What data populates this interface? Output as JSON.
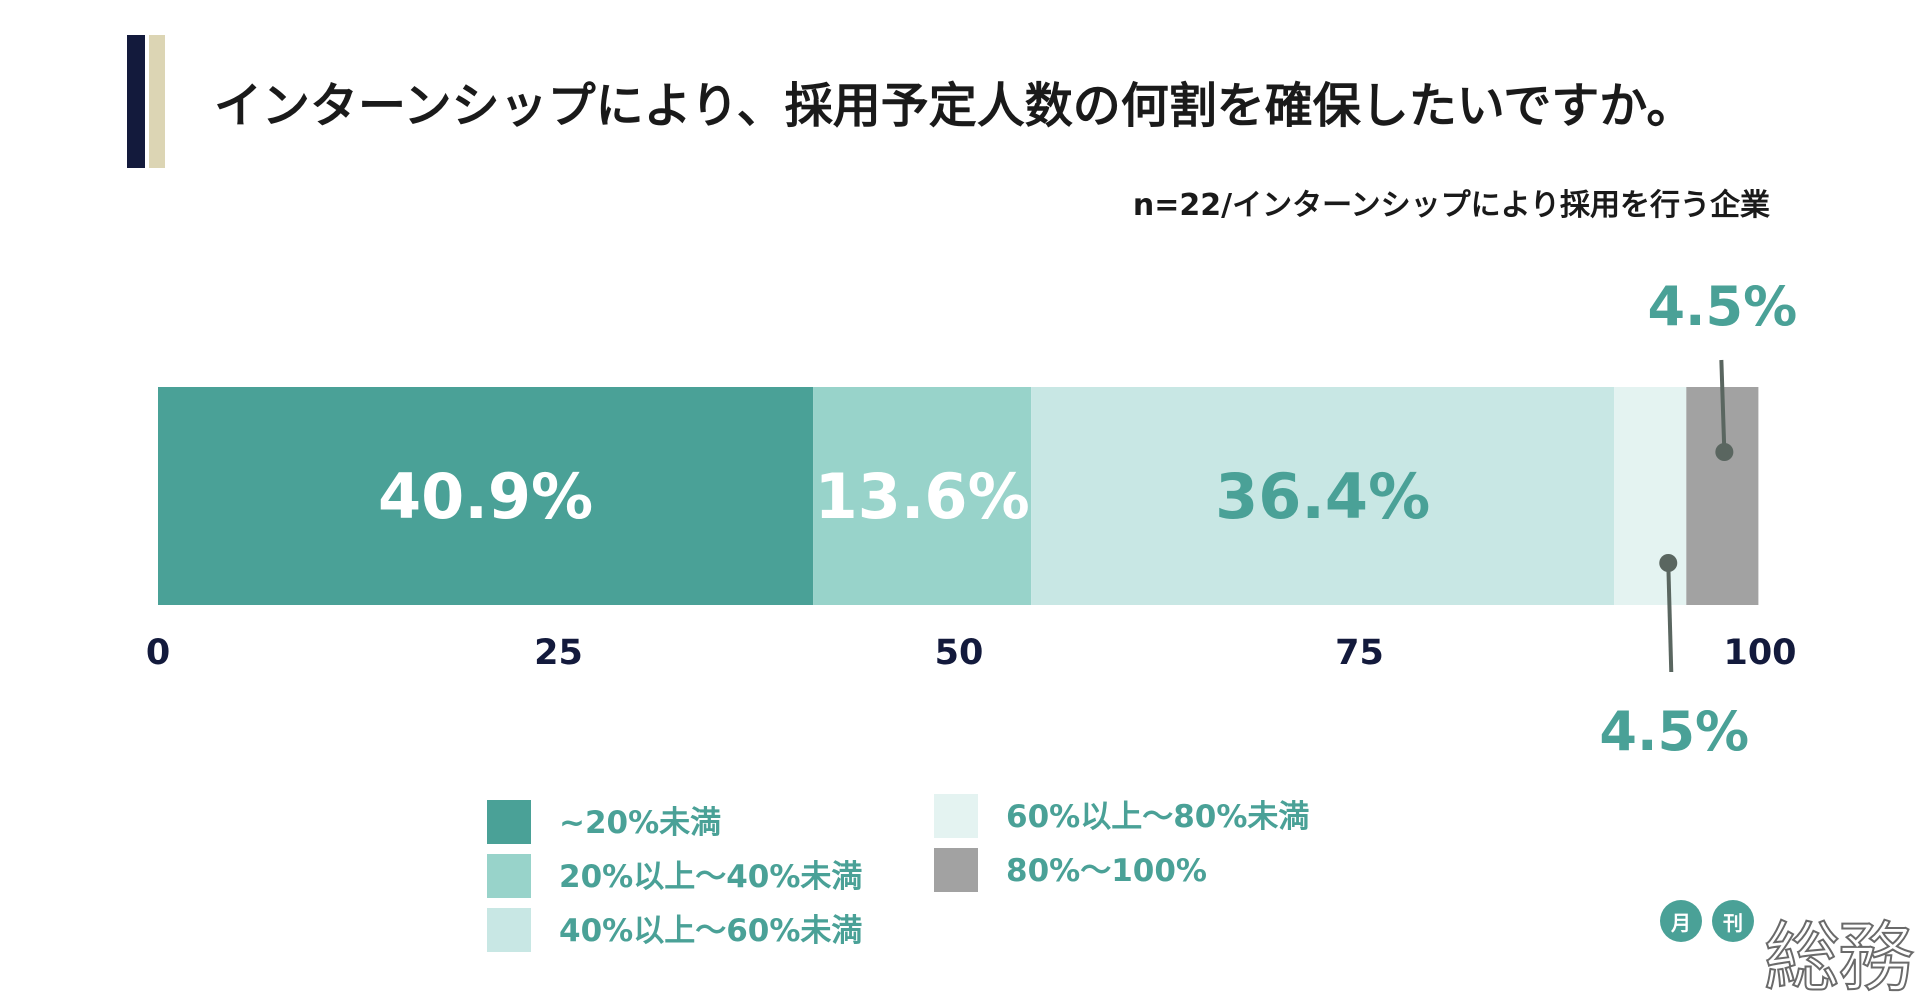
{
  "title": "インターンシップにより、採用予定人数の何割を確保したいですか。",
  "subtitle": "n=22/インターンシップにより採用を行う企業",
  "colors": {
    "c1": "#4aa197",
    "c2": "#98d3ca",
    "c3": "#c8e7e4",
    "c4": "#e4f3f1",
    "c5": "#a2a2a2",
    "label_dark_text": "#4aa197",
    "label_light_text": "#ffffff",
    "leader": "#5a6660"
  },
  "chart_data": {
    "type": "bar",
    "orientation": "horizontal-stacked",
    "title": "インターンシップにより、採用予定人数の何割を確保したいですか。",
    "subtitle": "n=22/インターンシップにより採用を行う企業",
    "xlim": [
      0,
      100
    ],
    "xticks": [
      "0",
      "25",
      "50",
      "75",
      "100"
    ],
    "series": [
      {
        "name": "~20%未満",
        "value": 40.9,
        "label": "40.9%"
      },
      {
        "name": "20%以上〜40%未満",
        "value": 13.6,
        "label": "13.6%"
      },
      {
        "name": "40%以上〜60%未満",
        "value": 36.4,
        "label": "36.4%"
      },
      {
        "name": "60%以上〜80%未満",
        "value": 4.5,
        "label": "4.5%"
      },
      {
        "name": "80%〜100%",
        "value": 4.5,
        "label": "4.5%"
      }
    ]
  },
  "logo": {
    "badge1": "月",
    "badge2": "刊",
    "main": "総務"
  }
}
